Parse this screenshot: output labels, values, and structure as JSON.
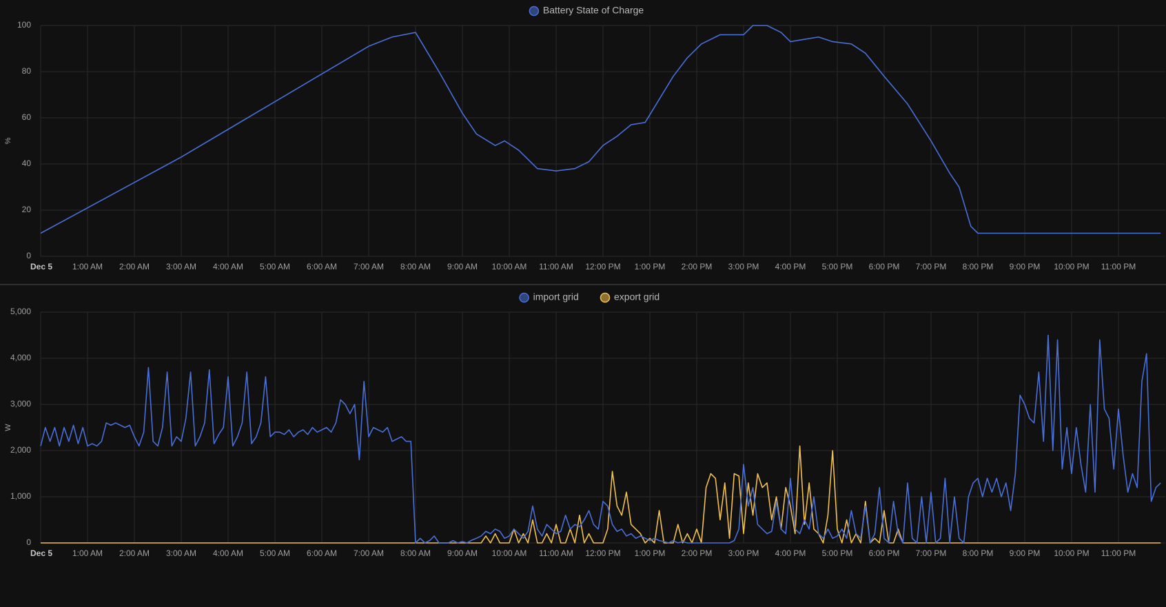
{
  "chart_data": [
    {
      "type": "line",
      "ylabel": "%",
      "xlim": [
        0,
        24
      ],
      "xticks": [
        {
          "value": 0,
          "label": "Dec 5"
        },
        {
          "value": 1,
          "label": "1:00 AM"
        },
        {
          "value": 2,
          "label": "2:00 AM"
        },
        {
          "value": 3,
          "label": "3:00 AM"
        },
        {
          "value": 4,
          "label": "4:00 AM"
        },
        {
          "value": 5,
          "label": "5:00 AM"
        },
        {
          "value": 6,
          "label": "6:00 AM"
        },
        {
          "value": 7,
          "label": "7:00 AM"
        },
        {
          "value": 8,
          "label": "8:00 AM"
        },
        {
          "value": 9,
          "label": "9:00 AM"
        },
        {
          "value": 10,
          "label": "10:00 AM"
        },
        {
          "value": 11,
          "label": "11:00 AM"
        },
        {
          "value": 12,
          "label": "12:00 PM"
        },
        {
          "value": 13,
          "label": "1:00 PM"
        },
        {
          "value": 14,
          "label": "2:00 PM"
        },
        {
          "value": 15,
          "label": "3:00 PM"
        },
        {
          "value": 16,
          "label": "4:00 PM"
        },
        {
          "value": 17,
          "label": "5:00 PM"
        },
        {
          "value": 18,
          "label": "6:00 PM"
        },
        {
          "value": 19,
          "label": "7:00 PM"
        },
        {
          "value": 20,
          "label": "8:00 PM"
        },
        {
          "value": 21,
          "label": "9:00 PM"
        },
        {
          "value": 22,
          "label": "10:00 PM"
        },
        {
          "value": 23,
          "label": "11:00 PM"
        }
      ],
      "ylim": [
        0,
        100
      ],
      "yticks": [
        0,
        20,
        40,
        60,
        80,
        100
      ],
      "grid": true,
      "legend": "top",
      "x": [
        0,
        1,
        2,
        3,
        4,
        5,
        6,
        7,
        7.5,
        8,
        8.5,
        9,
        9.3,
        9.7,
        9.9,
        10.2,
        10.6,
        11,
        11.4,
        11.7,
        12,
        12.3,
        12.6,
        12.9,
        13.2,
        13.5,
        13.8,
        14.1,
        14.5,
        15,
        15.2,
        15.5,
        15.8,
        16,
        16.3,
        16.6,
        16.9,
        17.3,
        17.6,
        18,
        18.5,
        19,
        19.4,
        19.6,
        19.85,
        20,
        23.9
      ],
      "series": [
        {
          "name": "Battery State of Charge",
          "color": "#4a6fd8",
          "values": [
            10,
            21,
            32,
            43,
            55,
            67,
            79,
            91,
            95,
            97,
            80,
            62,
            53,
            48,
            50,
            46,
            38,
            37,
            38,
            41,
            48,
            52,
            57,
            58,
            68,
            78,
            86,
            92,
            96,
            96,
            100,
            100,
            97,
            93,
            94,
            95,
            93,
            92,
            88,
            78,
            66,
            50,
            36,
            30,
            13,
            10,
            10
          ]
        }
      ]
    },
    {
      "type": "line",
      "ylabel": "W",
      "xlim": [
        0,
        24
      ],
      "xticks": [
        {
          "value": 0,
          "label": "Dec 5"
        },
        {
          "value": 1,
          "label": "1:00 AM"
        },
        {
          "value": 2,
          "label": "2:00 AM"
        },
        {
          "value": 3,
          "label": "3:00 AM"
        },
        {
          "value": 4,
          "label": "4:00 AM"
        },
        {
          "value": 5,
          "label": "5:00 AM"
        },
        {
          "value": 6,
          "label": "6:00 AM"
        },
        {
          "value": 7,
          "label": "7:00 AM"
        },
        {
          "value": 8,
          "label": "8:00 AM"
        },
        {
          "value": 9,
          "label": "9:00 AM"
        },
        {
          "value": 10,
          "label": "10:00 AM"
        },
        {
          "value": 11,
          "label": "11:00 AM"
        },
        {
          "value": 12,
          "label": "12:00 PM"
        },
        {
          "value": 13,
          "label": "1:00 PM"
        },
        {
          "value": 14,
          "label": "2:00 PM"
        },
        {
          "value": 15,
          "label": "3:00 PM"
        },
        {
          "value": 16,
          "label": "4:00 PM"
        },
        {
          "value": 17,
          "label": "5:00 PM"
        },
        {
          "value": 18,
          "label": "6:00 PM"
        },
        {
          "value": 19,
          "label": "7:00 PM"
        },
        {
          "value": 20,
          "label": "8:00 PM"
        },
        {
          "value": 21,
          "label": "9:00 PM"
        },
        {
          "value": 22,
          "label": "10:00 PM"
        },
        {
          "value": 23,
          "label": "11:00 PM"
        }
      ],
      "ylim": [
        0,
        5000
      ],
      "yticks": [
        0,
        {
          "value": 1000,
          "label": "1,000"
        },
        {
          "value": 2000,
          "label": "2,000"
        },
        {
          "value": 3000,
          "label": "3,000"
        },
        {
          "value": 4000,
          "label": "4,000"
        },
        {
          "value": 5000,
          "label": "5,000"
        }
      ],
      "grid": true,
      "legend": "top",
      "x": [
        0,
        0.1,
        0.2,
        0.3,
        0.4,
        0.5,
        0.6,
        0.7,
        0.8,
        0.9,
        1,
        1.1,
        1.2,
        1.3,
        1.4,
        1.5,
        1.6,
        1.7,
        1.8,
        1.9,
        2,
        2.1,
        2.2,
        2.3,
        2.4,
        2.5,
        2.6,
        2.7,
        2.8,
        2.9,
        3,
        3.1,
        3.2,
        3.3,
        3.4,
        3.5,
        3.6,
        3.7,
        3.8,
        3.9,
        4,
        4.1,
        4.2,
        4.3,
        4.4,
        4.5,
        4.6,
        4.7,
        4.8,
        4.9,
        5,
        5.1,
        5.2,
        5.3,
        5.4,
        5.5,
        5.6,
        5.7,
        5.8,
        5.9,
        6,
        6.1,
        6.2,
        6.3,
        6.4,
        6.5,
        6.6,
        6.7,
        6.8,
        6.9,
        7,
        7.1,
        7.2,
        7.3,
        7.4,
        7.5,
        7.6,
        7.7,
        7.8,
        7.9,
        8,
        8.1,
        8.2,
        8.3,
        8.4,
        8.5,
        8.6,
        8.7,
        8.8,
        8.9,
        9,
        9.1,
        9.2,
        9.3,
        9.4,
        9.5,
        9.6,
        9.7,
        9.8,
        9.9,
        10,
        10.1,
        10.2,
        10.3,
        10.4,
        10.5,
        10.6,
        10.7,
        10.8,
        10.9,
        11,
        11.1,
        11.2,
        11.3,
        11.4,
        11.5,
        11.6,
        11.7,
        11.8,
        11.9,
        12,
        12.1,
        12.2,
        12.3,
        12.4,
        12.5,
        12.6,
        12.7,
        12.8,
        12.9,
        13,
        13.1,
        13.2,
        13.3,
        13.4,
        13.5,
        13.6,
        13.7,
        13.8,
        13.9,
        14,
        14.1,
        14.2,
        14.3,
        14.4,
        14.5,
        14.6,
        14.7,
        14.8,
        14.9,
        15,
        15.1,
        15.2,
        15.3,
        15.4,
        15.5,
        15.6,
        15.7,
        15.8,
        15.9,
        16,
        16.1,
        16.2,
        16.3,
        16.4,
        16.5,
        16.6,
        16.7,
        16.8,
        16.9,
        17,
        17.1,
        17.2,
        17.3,
        17.4,
        17.5,
        17.6,
        17.7,
        17.8,
        17.9,
        18,
        18.1,
        18.2,
        18.3,
        18.4,
        18.5,
        18.6,
        18.7,
        18.8,
        18.9,
        19,
        19.1,
        19.2,
        19.3,
        19.4,
        19.5,
        19.6,
        19.7,
        19.8,
        19.9,
        20,
        20.1,
        20.2,
        20.3,
        20.4,
        20.5,
        20.6,
        20.7,
        20.8,
        20.9,
        21,
        21.1,
        21.2,
        21.3,
        21.4,
        21.5,
        21.6,
        21.7,
        21.8,
        21.9,
        22,
        22.1,
        22.2,
        22.3,
        22.4,
        22.5,
        22.6,
        22.7,
        22.8,
        22.9,
        23,
        23.1,
        23.2,
        23.3,
        23.4,
        23.5,
        23.6,
        23.7,
        23.8,
        23.9
      ],
      "series": [
        {
          "name": "import grid",
          "color": "#4a6fd8",
          "values": [
            2100,
            2500,
            2200,
            2500,
            2100,
            2500,
            2200,
            2550,
            2150,
            2500,
            2100,
            2150,
            2100,
            2200,
            2600,
            2550,
            2600,
            2550,
            2500,
            2550,
            2300,
            2100,
            2400,
            3800,
            2200,
            2100,
            2500,
            3700,
            2100,
            2300,
            2200,
            2700,
            3700,
            2100,
            2300,
            2600,
            3750,
            2150,
            2350,
            2500,
            3600,
            2100,
            2300,
            2600,
            3700,
            2150,
            2300,
            2600,
            3600,
            2300,
            2400,
            2400,
            2350,
            2450,
            2300,
            2400,
            2450,
            2350,
            2500,
            2400,
            2450,
            2500,
            2400,
            2600,
            3100,
            3000,
            2800,
            3000,
            1800,
            3500,
            2300,
            2500,
            2450,
            2400,
            2500,
            2200,
            2250,
            2300,
            2200,
            2200,
            0,
            100,
            0,
            50,
            150,
            0,
            0,
            0,
            50,
            0,
            30,
            0,
            60,
            100,
            150,
            250,
            200,
            300,
            250,
            100,
            150,
            300,
            200,
            100,
            250,
            800,
            300,
            150,
            400,
            300,
            200,
            250,
            600,
            300,
            400,
            350,
            500,
            700,
            400,
            300,
            900,
            800,
            400,
            250,
            300,
            150,
            200,
            100,
            150,
            100,
            50,
            100,
            50,
            30,
            0,
            50,
            0,
            30,
            0,
            0,
            0,
            0,
            0,
            0,
            0,
            0,
            0,
            0,
            50,
            300,
            1700,
            800,
            1200,
            400,
            300,
            200,
            250,
            900,
            300,
            200,
            1400,
            300,
            200,
            500,
            300,
            1000,
            200,
            100,
            300,
            100,
            150,
            300,
            100,
            700,
            200,
            100,
            800,
            0,
            200,
            1200,
            100,
            0,
            900,
            200,
            0,
            1300,
            100,
            0,
            1000,
            0,
            1100,
            0,
            100,
            1400,
            0,
            1000,
            100,
            0,
            1000,
            1300,
            1400,
            1000,
            1400,
            1100,
            1400,
            1000,
            1300,
            700,
            1500,
            3200,
            3000,
            2700,
            2600,
            3700,
            2200,
            4500,
            2000,
            4400,
            1600,
            2500,
            1500,
            2500,
            1700,
            1100,
            3000,
            1100,
            4400,
            2900,
            2700,
            1600,
            2900,
            1900,
            1100,
            1500,
            1200,
            3500,
            4100,
            900,
            1200,
            1300
          ]
        },
        {
          "name": "export grid",
          "color": "#f2c14e",
          "values": [
            0,
            0,
            0,
            0,
            0,
            0,
            0,
            0,
            0,
            0,
            0,
            0,
            0,
            0,
            0,
            0,
            0,
            0,
            0,
            0,
            0,
            0,
            0,
            0,
            0,
            0,
            0,
            0,
            0,
            0,
            0,
            0,
            0,
            0,
            0,
            0,
            0,
            0,
            0,
            0,
            0,
            0,
            0,
            0,
            0,
            0,
            0,
            0,
            0,
            0,
            0,
            0,
            0,
            0,
            0,
            0,
            0,
            0,
            0,
            0,
            0,
            0,
            0,
            0,
            0,
            0,
            0,
            0,
            0,
            0,
            0,
            0,
            0,
            0,
            0,
            0,
            0,
            0,
            0,
            0,
            0,
            0,
            0,
            0,
            0,
            0,
            0,
            0,
            0,
            0,
            0,
            0,
            0,
            0,
            0,
            150,
            0,
            200,
            0,
            0,
            0,
            300,
            0,
            200,
            0,
            500,
            0,
            0,
            200,
            0,
            400,
            0,
            0,
            300,
            0,
            600,
            0,
            200,
            0,
            0,
            0,
            300,
            1550,
            800,
            600,
            1100,
            400,
            300,
            200,
            0,
            100,
            0,
            700,
            0,
            0,
            0,
            400,
            0,
            200,
            0,
            300,
            0,
            1200,
            1500,
            1400,
            500,
            1300,
            100,
            1500,
            1450,
            200,
            1300,
            600,
            1500,
            1200,
            1300,
            500,
            1000,
            300,
            1200,
            800,
            200,
            2100,
            400,
            1300,
            300,
            200,
            0,
            600,
            2000,
            300,
            0,
            500,
            0,
            200,
            0,
            900,
            0,
            100,
            0,
            700,
            0,
            0,
            300,
            0,
            0,
            0,
            0,
            0,
            0,
            0,
            0,
            0,
            0,
            0,
            0,
            0,
            0,
            0,
            0,
            0,
            0,
            0,
            0,
            0,
            0,
            0,
            0,
            0,
            0,
            0,
            0,
            0,
            0,
            0,
            0,
            0,
            0,
            0,
            0,
            0,
            0,
            0,
            0,
            0,
            0,
            0,
            0,
            0,
            0,
            0,
            0,
            0,
            0,
            0,
            0,
            0,
            0,
            0,
            0
          ]
        }
      ]
    }
  ]
}
